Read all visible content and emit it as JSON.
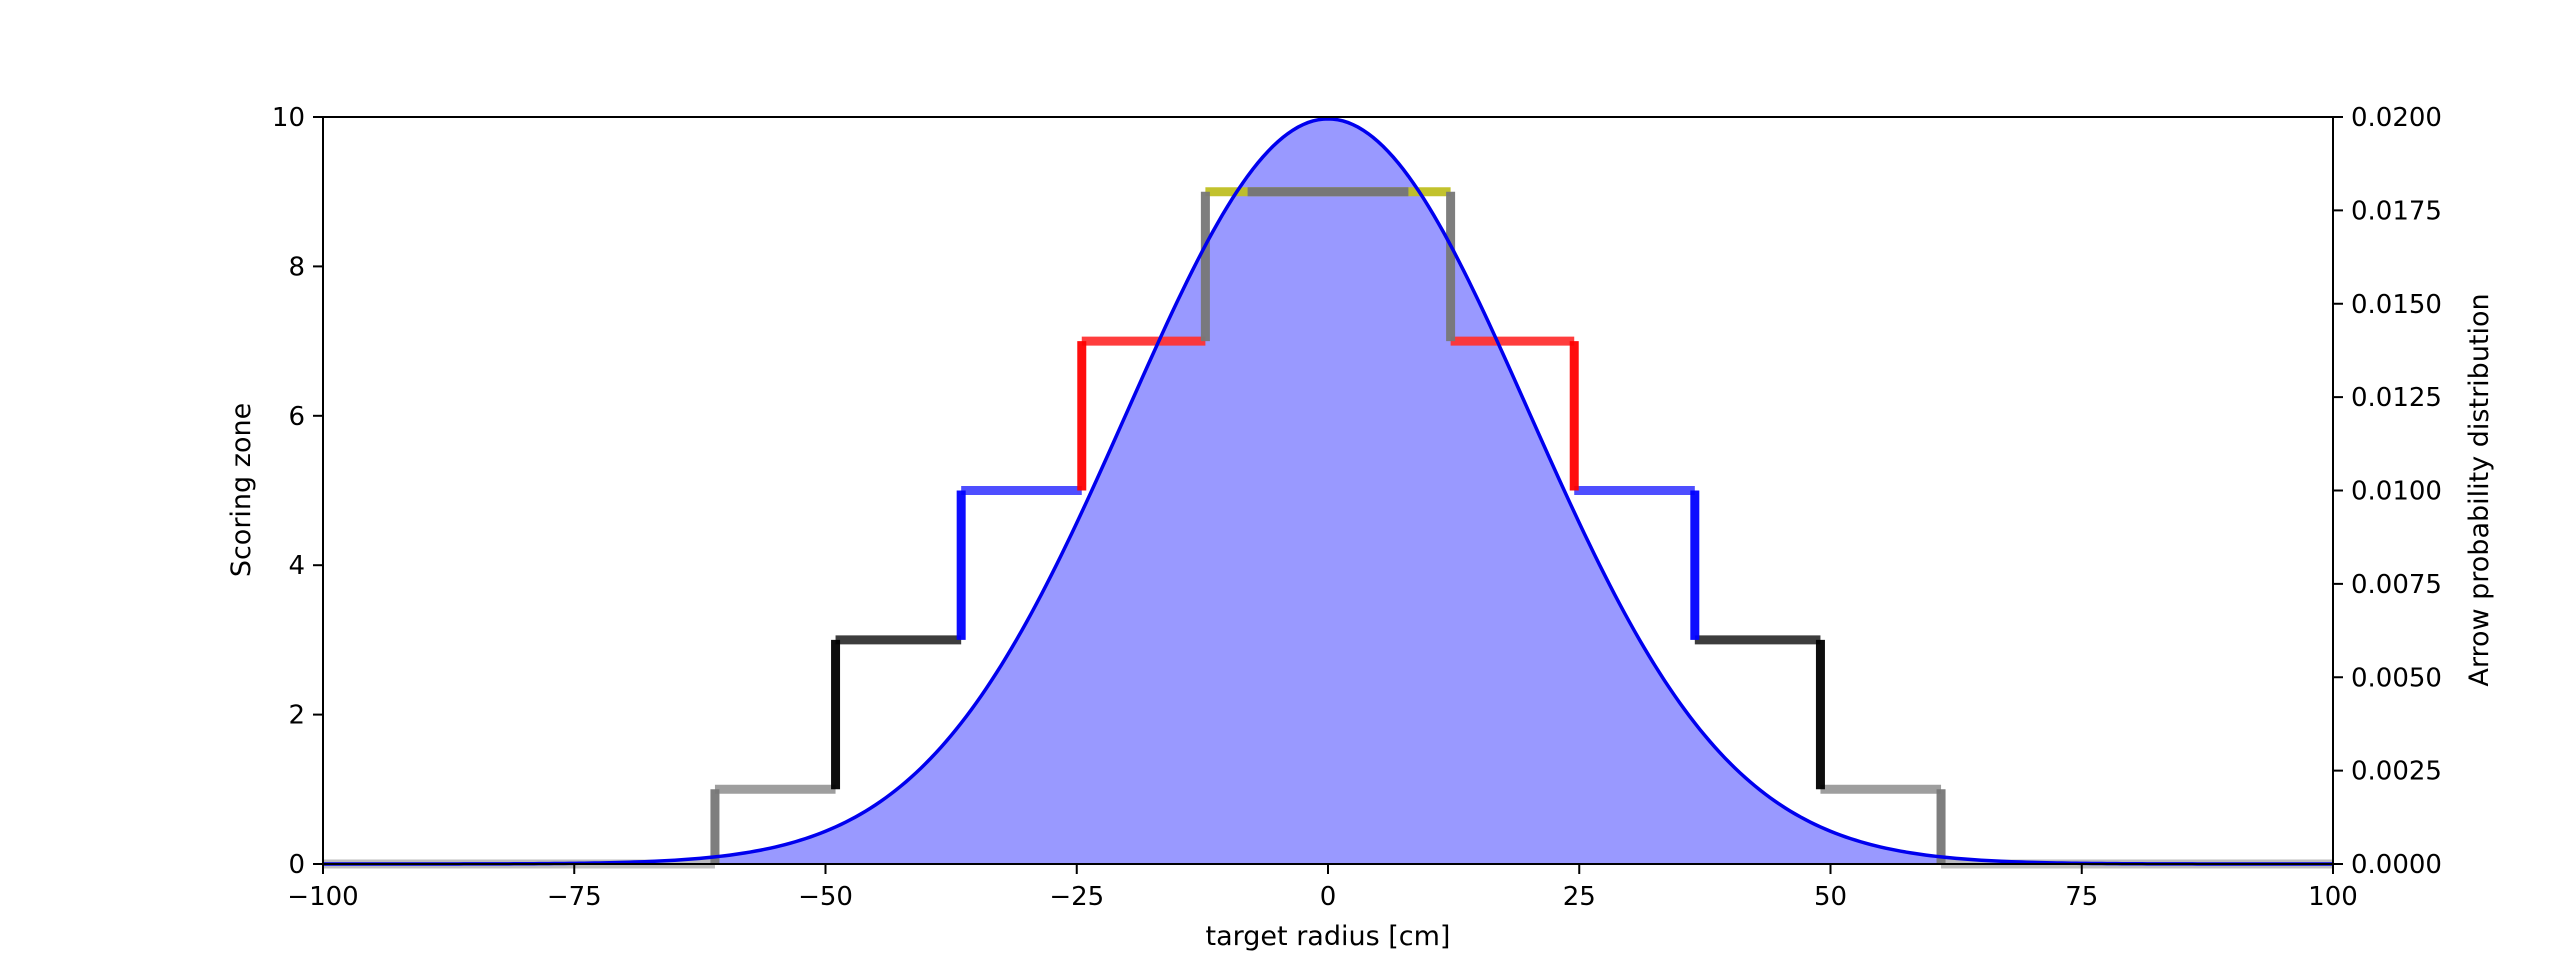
{
  "chart_data": {
    "type": "line",
    "title": "",
    "xlabel": "target radius [cm]",
    "ylabel": "Scoring zone",
    "y2label": "Arrow probability distribution",
    "xlim": [
      -100,
      100
    ],
    "ylim": [
      0,
      10
    ],
    "y2lim": [
      0,
      0.02
    ],
    "grid": false,
    "legend": "none",
    "x_ticks": [
      "−100",
      "−75",
      "−50",
      "−25",
      "0",
      "25",
      "50",
      "75",
      "100"
    ],
    "y_ticks": [
      "0",
      "2",
      "4",
      "6",
      "8",
      "10"
    ],
    "y2_ticks": [
      "0.0000",
      "0.0025",
      "0.0050",
      "0.0075",
      "0.0100",
      "0.0125",
      "0.0150",
      "0.0175",
      "0.0200"
    ],
    "scoring_zones": [
      {
        "x_from": -100,
        "x_to": -61,
        "score": 0,
        "color": "#bbbbbb"
      },
      {
        "x_from": -61,
        "x_to": -49,
        "score": 1,
        "color": "#999999"
      },
      {
        "x_from": -49,
        "x_to": -36.5,
        "score": 3,
        "color": "#333333"
      },
      {
        "x_from": -36.5,
        "x_to": -24.5,
        "score": 5,
        "color": "#4444ff"
      },
      {
        "x_from": -24.5,
        "x_to": -12.2,
        "score": 7,
        "color": "#ff3333"
      },
      {
        "x_from": -12.2,
        "x_to": 12.2,
        "score": 9,
        "color": "#bfbf22"
      },
      {
        "x_from": 12.2,
        "x_to": 24.5,
        "score": 7,
        "color": "#ff3333"
      },
      {
        "x_from": 24.5,
        "x_to": 36.5,
        "score": 5,
        "color": "#4444ff"
      },
      {
        "x_from": 36.5,
        "x_to": 49,
        "score": 3,
        "color": "#333333"
      },
      {
        "x_from": 49,
        "x_to": 61,
        "score": 1,
        "color": "#999999"
      },
      {
        "x_from": 61,
        "x_to": 100,
        "score": 0,
        "color": "#bbbbbb"
      }
    ],
    "zone_boundaries": [
      {
        "x": -61,
        "y_from": 0,
        "y_to": 1,
        "color": "#777777"
      },
      {
        "x": -49,
        "y_from": 1,
        "y_to": 3,
        "color": "#000000"
      },
      {
        "x": -36.5,
        "y_from": 3,
        "y_to": 5,
        "color": "#0000ff"
      },
      {
        "x": -24.5,
        "y_from": 5,
        "y_to": 7,
        "color": "#ff0000"
      },
      {
        "x": -12.2,
        "y_from": 7,
        "y_to": 9,
        "color": "#777777"
      },
      {
        "x": 12.2,
        "y_from": 7,
        "y_to": 9,
        "color": "#777777"
      },
      {
        "x": 24.5,
        "y_from": 5,
        "y_to": 7,
        "color": "#ff0000"
      },
      {
        "x": 36.5,
        "y_from": 3,
        "y_to": 5,
        "color": "#0000ff"
      },
      {
        "x": 49,
        "y_from": 1,
        "y_to": 3,
        "color": "#000000"
      },
      {
        "x": 61,
        "y_from": 0,
        "y_to": 1,
        "color": "#777777"
      }
    ],
    "center_overlay": {
      "x_from": -8,
      "x_to": 8,
      "score": 9,
      "color": "#777777"
    },
    "distribution": {
      "kind": "gaussian",
      "mean": 0,
      "std": 20,
      "peak": 0.01995,
      "line_color": "#0000ee",
      "fill_color": "#9999ff"
    }
  }
}
